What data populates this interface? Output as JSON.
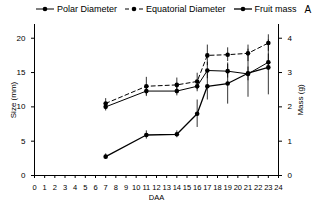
{
  "chart_data": {
    "type": "line",
    "annotations": [
      "A"
    ],
    "x_label": "DAA",
    "y_label": "Size (mm)",
    "y2_label": "Mass (g)",
    "x": [
      7,
      11,
      14,
      16,
      17,
      19,
      21,
      23
    ],
    "xlim": [
      0,
      24
    ],
    "xticks": [
      0,
      1,
      2,
      3,
      4,
      5,
      6,
      7,
      8,
      9,
      10,
      11,
      12,
      13,
      14,
      15,
      16,
      17,
      18,
      19,
      20,
      21,
      22,
      23,
      24
    ],
    "ylim": [
      0,
      22
    ],
    "yticks": [
      0,
      5,
      10,
      15,
      20
    ],
    "y2lim": [
      0,
      4.4
    ],
    "y2ticks": [
      0,
      1,
      2,
      3,
      4
    ],
    "legend": "top-left",
    "series": [
      {
        "name": "Polar Diameter",
        "color": "#000000",
        "marker": "circle",
        "line_style": "solid",
        "values": [
          10.0,
          12.3,
          12.3,
          13.0,
          15.3,
          15.2,
          14.8,
          16.5
        ],
        "errors": [
          0.6,
          0.8,
          0.7,
          0.8,
          1.2,
          1.0,
          1.0,
          1.2
        ]
      },
      {
        "name": "Equatorial Diameter",
        "color": "#000000",
        "marker": "circle",
        "line_style": "dashed",
        "values": [
          10.5,
          13.0,
          13.2,
          13.7,
          17.5,
          17.6,
          17.8,
          19.3
        ],
        "errors": [
          0.7,
          1.3,
          1.0,
          1.2,
          1.5,
          1.0,
          1.2,
          1.2
        ]
      },
      {
        "name": "Fruit mass",
        "color": "#000000",
        "marker": "circle",
        "line_style": "solid",
        "axis": "y2",
        "values": [
          0.55,
          1.18,
          1.2,
          1.8,
          2.6,
          2.68,
          2.98,
          3.15
        ],
        "errors": [
          0.08,
          0.12,
          0.1,
          0.4,
          0.4,
          0.6,
          0.7,
          0.8
        ]
      }
    ]
  }
}
